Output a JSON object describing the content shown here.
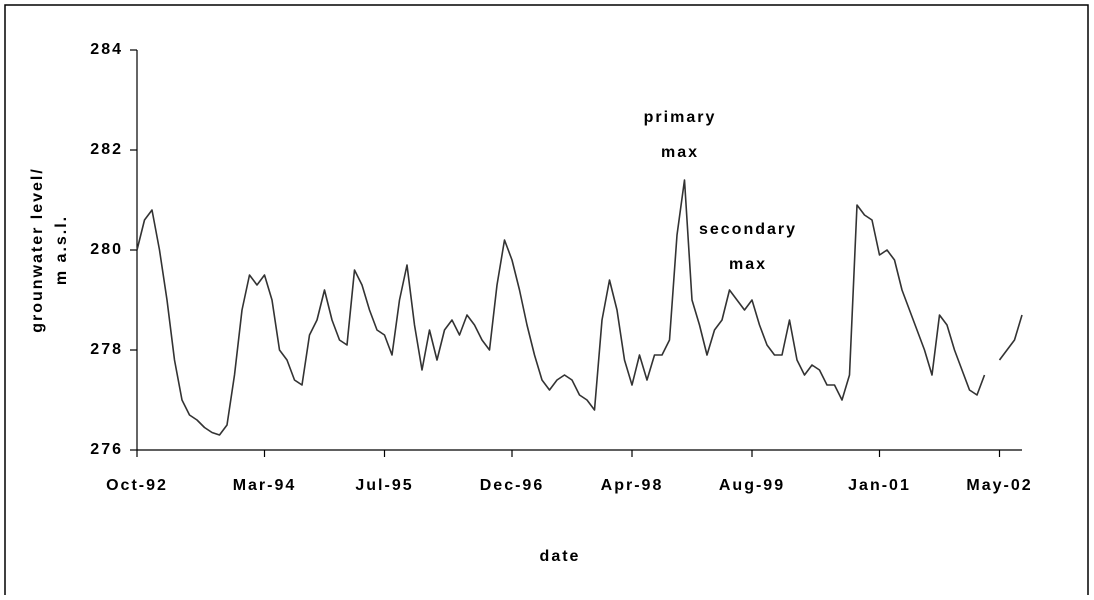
{
  "chart_data": {
    "type": "line",
    "y_label": [
      "grounwater level/",
      "m a.s.l."
    ],
    "x_label": "date",
    "annotations": [
      {
        "lines": [
          "primary",
          "max"
        ]
      },
      {
        "lines": [
          "secondary",
          "max"
        ]
      }
    ],
    "color": "#333333",
    "xlim": [
      "1992-10",
      "2002-08"
    ],
    "xticks": [
      {
        "value": "1992-10",
        "label": "Oct-92"
      },
      {
        "value": "1994-03",
        "label": "Mar-94"
      },
      {
        "value": "1995-07",
        "label": "Jul-95"
      },
      {
        "value": "1996-12",
        "label": "Dec-96"
      },
      {
        "value": "1998-04",
        "label": "Apr-98"
      },
      {
        "value": "1999-08",
        "label": "Aug-99"
      },
      {
        "value": "2001-01",
        "label": "Jan-01"
      },
      {
        "value": "2002-05",
        "label": "May-02"
      }
    ],
    "ylim": [
      276,
      284
    ],
    "yticks": [
      276,
      278,
      280,
      282,
      284
    ],
    "x": [
      "1992-10",
      "1992-11",
      "1992-12",
      "1993-01",
      "1993-02",
      "1993-03",
      "1993-04",
      "1993-05",
      "1993-06",
      "1993-07",
      "1993-08",
      "1993-09",
      "1993-10",
      "1993-11",
      "1993-12",
      "1994-01",
      "1994-02",
      "1994-03",
      "1994-04",
      "1994-05",
      "1994-06",
      "1994-07",
      "1994-08",
      "1994-09",
      "1994-10",
      "1994-11",
      "1994-12",
      "1995-01",
      "1995-02",
      "1995-03",
      "1995-04",
      "1995-05",
      "1995-06",
      "1995-07",
      "1995-08",
      "1995-09",
      "1995-10",
      "1995-11",
      "1995-12",
      "1996-01",
      "1996-02",
      "1996-03",
      "1996-04",
      "1996-05",
      "1996-06",
      "1996-07",
      "1996-08",
      "1996-09",
      "1996-10",
      "1996-11",
      "1996-12",
      "1997-01",
      "1997-02",
      "1997-03",
      "1997-04",
      "1997-05",
      "1997-06",
      "1997-07",
      "1997-08",
      "1997-09",
      "1997-10",
      "1997-11",
      "1997-12",
      "1998-01",
      "1998-02",
      "1998-03",
      "1998-04",
      "1998-05",
      "1998-06",
      "1998-07",
      "1998-08",
      "1998-09",
      "1998-10",
      "1998-11",
      "1998-12",
      "1999-01",
      "1999-02",
      "1999-03",
      "1999-04",
      "1999-05",
      "1999-06",
      "1999-07",
      "1999-08",
      "1999-09",
      "1999-10",
      "1999-11",
      "1999-12",
      "2000-01",
      "2000-02",
      "2000-03",
      "2000-04",
      "2000-05",
      "2000-06",
      "2000-07",
      "2000-08",
      "2000-09",
      "2000-10",
      "2000-11",
      "2000-12",
      "2001-01",
      "2001-02",
      "2001-03",
      "2001-04",
      "2001-05",
      "2001-06",
      "2001-07",
      "2001-08",
      "2001-09",
      "2001-10",
      "2001-11",
      "2001-12",
      "2002-01",
      "2002-02",
      "2002-03",
      "2002-04",
      "2002-05",
      "2002-06",
      "2002-07",
      "2002-08"
    ],
    "values": [
      280.0,
      280.6,
      280.8,
      280.0,
      279.0,
      277.8,
      277.0,
      276.7,
      276.6,
      276.45,
      276.35,
      276.3,
      276.5,
      277.5,
      278.8,
      279.5,
      279.3,
      279.5,
      279.0,
      278.0,
      277.8,
      277.4,
      277.3,
      278.3,
      278.6,
      279.2,
      278.6,
      278.2,
      278.1,
      279.6,
      279.3,
      278.8,
      278.4,
      278.3,
      277.9,
      279.0,
      279.7,
      278.5,
      277.6,
      278.4,
      277.8,
      278.4,
      278.6,
      278.3,
      278.7,
      278.5,
      278.2,
      278.0,
      279.3,
      280.2,
      279.8,
      279.2,
      278.5,
      277.9,
      277.4,
      277.2,
      277.4,
      277.5,
      277.4,
      277.1,
      277.0,
      276.8,
      278.6,
      279.4,
      278.8,
      277.8,
      277.3,
      277.9,
      277.4,
      277.9,
      277.9,
      278.2,
      280.3,
      281.4,
      279.0,
      278.5,
      277.9,
      278.4,
      278.6,
      279.2,
      279.0,
      278.8,
      279.0,
      278.5,
      278.1,
      277.9,
      277.9,
      278.6,
      277.8,
      277.5,
      277.7,
      277.6,
      277.3,
      277.3,
      277.0,
      277.5,
      280.9,
      280.7,
      280.6,
      279.9,
      280.0,
      279.8,
      279.2,
      278.8,
      278.4,
      278.0,
      277.5,
      278.7,
      278.5,
      278.0,
      277.6,
      277.2,
      277.1,
      277.5,
      null,
      277.8,
      278.0,
      278.2,
      278.7
    ]
  }
}
